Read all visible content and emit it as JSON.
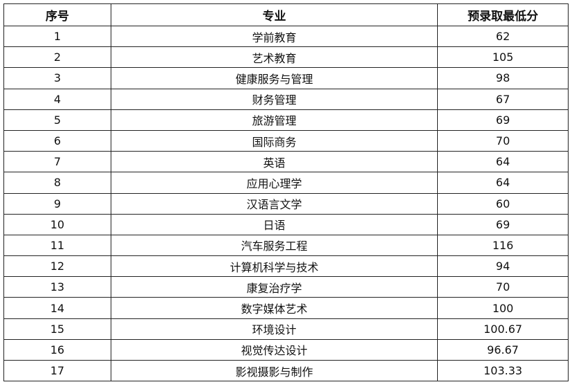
{
  "table": {
    "headers": [
      "序号",
      "专业",
      "预录取最低分"
    ],
    "rows": [
      [
        "1",
        "学前教育",
        "62"
      ],
      [
        "2",
        "艺术教育",
        "105"
      ],
      [
        "3",
        "健康服务与管理",
        "98"
      ],
      [
        "4",
        "财务管理",
        "67"
      ],
      [
        "5",
        "旅游管理",
        "69"
      ],
      [
        "6",
        "国际商务",
        "70"
      ],
      [
        "7",
        "英语",
        "64"
      ],
      [
        "8",
        "应用心理学",
        "64"
      ],
      [
        "9",
        "汉语言文学",
        "60"
      ],
      [
        "10",
        "日语",
        "69"
      ],
      [
        "11",
        "汽车服务工程",
        "116"
      ],
      [
        "12",
        "计算机科学与技术",
        "94"
      ],
      [
        "13",
        "康复治疗学",
        "70"
      ],
      [
        "14",
        "数字媒体艺术",
        "100"
      ],
      [
        "15",
        "环境设计",
        "100.67"
      ],
      [
        "16",
        "视觉传达设计",
        "96.67"
      ],
      [
        "17",
        "影视摄影与制作",
        "103.33"
      ]
    ]
  }
}
